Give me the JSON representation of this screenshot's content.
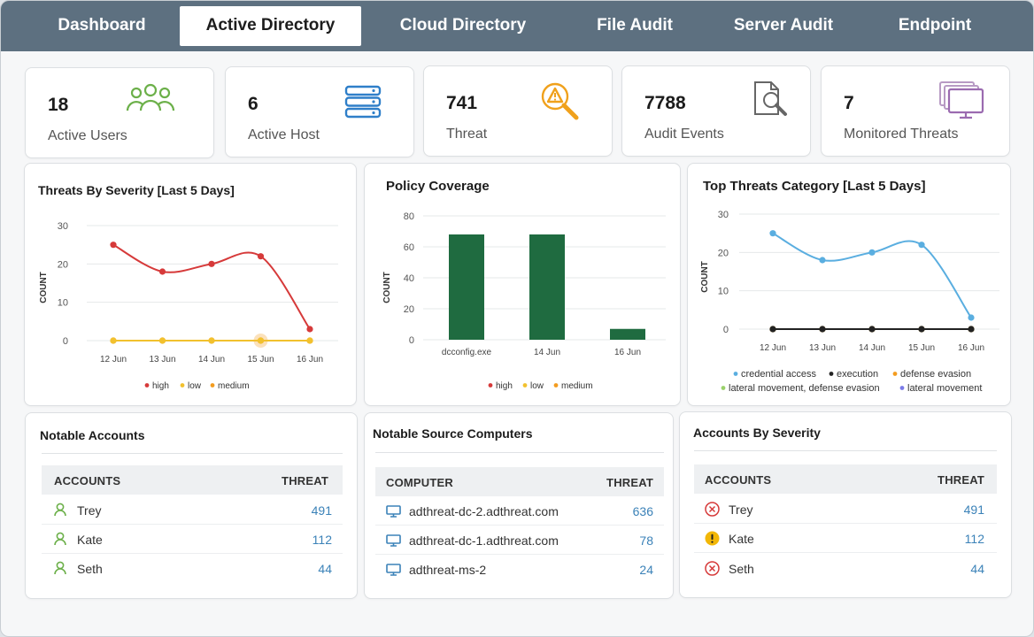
{
  "nav": {
    "tabs": [
      "Dashboard",
      "Active Directory",
      "Cloud Directory",
      "File Audit",
      "Server Audit",
      "Endpoint"
    ],
    "active": "Active Directory"
  },
  "stats": [
    {
      "value": "18",
      "label": "Active Users",
      "icon": "users-icon",
      "color": "#6cb04a"
    },
    {
      "value": "6",
      "label": "Active Host",
      "icon": "server-stack-icon",
      "color": "#2f7fc9"
    },
    {
      "value": "741",
      "label": "Threat",
      "icon": "threat-search-icon",
      "color": "#f0a11c"
    },
    {
      "value": "7788",
      "label": "Audit Events",
      "icon": "document-search-icon",
      "color": "#666666"
    },
    {
      "value": "7",
      "label": "Monitored Threats",
      "icon": "monitors-icon",
      "color": "#9b6bb0"
    }
  ],
  "threats_by_severity": {
    "title": "Threats By Severity [Last 5 Days]",
    "ylabel": "COUNT",
    "yticks": [
      "0",
      "10",
      "20",
      "30"
    ],
    "legend": [
      "high",
      "low",
      "medium"
    ]
  },
  "policy_coverage": {
    "title": "Policy Coverage",
    "ylabel": "COUNT",
    "yticks": [
      "0",
      "20",
      "40",
      "60",
      "80"
    ],
    "legend": [
      "high",
      "low",
      "medium"
    ]
  },
  "top_threats": {
    "title": "Top Threats Category [Last 5 Days]",
    "ylabel": "COUNT",
    "yticks": [
      "0",
      "10",
      "20",
      "30"
    ],
    "legend": [
      "credential access",
      "execution",
      "defense evasion",
      "lateral movement, defense evasion",
      "lateral movement"
    ]
  },
  "chart_data": [
    {
      "type": "line",
      "title": "Threats By Severity [Last 5 Days]",
      "ylabel": "COUNT",
      "ylim": [
        0,
        30
      ],
      "x": [
        "12 Jun",
        "13 Jun",
        "14 Jun",
        "15 Jun",
        "16 Jun"
      ],
      "series": [
        {
          "name": "high",
          "values": [
            25,
            18,
            20,
            22,
            3
          ],
          "color": "#d63a3a"
        },
        {
          "name": "low",
          "values": [
            0,
            0,
            0,
            0,
            0
          ],
          "color": "#f2c12e"
        },
        {
          "name": "medium",
          "values": [
            0,
            0,
            0,
            0,
            0
          ],
          "color": "#f39c1f"
        }
      ]
    },
    {
      "type": "bar",
      "title": "Policy Coverage",
      "ylabel": "COUNT",
      "ylim": [
        0,
        80
      ],
      "categories": [
        "dcconfig.exe",
        "14 Jun",
        "16 Jun"
      ],
      "values": [
        68,
        68,
        7
      ],
      "color": "#1f6b40",
      "legend": [
        "high",
        "low",
        "medium"
      ]
    },
    {
      "type": "line",
      "title": "Top Threats Category [Last 5 Days]",
      "ylabel": "COUNT",
      "ylim": [
        0,
        30
      ],
      "x": [
        "12 Jun",
        "13 Jun",
        "14 Jun",
        "15 Jun",
        "16 Jun"
      ],
      "series": [
        {
          "name": "credential access",
          "values": [
            25,
            18,
            20,
            22,
            3
          ],
          "color": "#5aaee0"
        },
        {
          "name": "execution",
          "values": [
            0,
            0,
            0,
            0,
            0
          ],
          "color": "#222222"
        },
        {
          "name": "defense evasion",
          "values": [
            0,
            0,
            0,
            0,
            0
          ],
          "color": "#f39c1f"
        },
        {
          "name": "lateral movement, defense evasion",
          "values": [
            0,
            0,
            0,
            0,
            0
          ],
          "color": "#9ad16b"
        },
        {
          "name": "lateral movement",
          "values": [
            0,
            0,
            0,
            0,
            0
          ],
          "color": "#7b7be8"
        }
      ]
    }
  ],
  "notable_accounts": {
    "title": "Notable Accounts",
    "col1": "ACCOUNTS",
    "col2": "THREAT",
    "rows": [
      {
        "name": "Trey",
        "value": "491"
      },
      {
        "name": "Kate",
        "value": "112"
      },
      {
        "name": "Seth",
        "value": "44"
      }
    ]
  },
  "notable_computers": {
    "title": "Notable Source Computers",
    "col1": "COMPUTER",
    "col2": "THREAT",
    "rows": [
      {
        "name": "adthreat-dc-2.adthreat.com",
        "value": "636"
      },
      {
        "name": "adthreat-dc-1.adthreat.com",
        "value": "78"
      },
      {
        "name": "adthreat-ms-2",
        "value": "24"
      }
    ]
  },
  "accounts_by_severity": {
    "title": "Accounts By Severity",
    "col1": "ACCOUNTS",
    "col2": "THREAT",
    "rows": [
      {
        "name": "Trey",
        "value": "491",
        "icon": "critical-x-icon"
      },
      {
        "name": "Kate",
        "value": "112",
        "icon": "warning-icon"
      },
      {
        "name": "Seth",
        "value": "44",
        "icon": "critical-x-icon"
      }
    ]
  }
}
